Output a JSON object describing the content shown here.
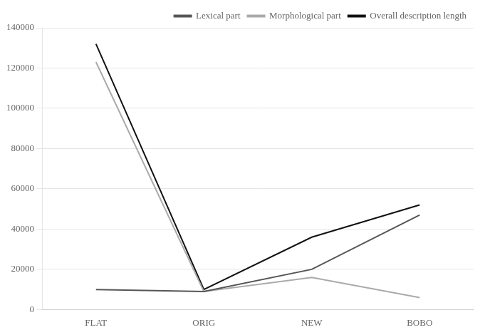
{
  "chart_data": {
    "type": "line",
    "categories": [
      "FLAT",
      "ORIG",
      "NEW",
      "BOBO"
    ],
    "series": [
      {
        "name": "Lexical part",
        "color": "#555555",
        "values": [
          10000,
          9000,
          20000,
          47000
        ]
      },
      {
        "name": "Morphological part",
        "color": "#aaaaaa",
        "values": [
          123000,
          9000,
          16000,
          6000
        ]
      },
      {
        "name": "Overall description length",
        "color": "#111111",
        "values": [
          132000,
          10000,
          36000,
          52000
        ]
      }
    ],
    "ylim": [
      0,
      140000
    ],
    "yticks": [
      0,
      20000,
      40000,
      60000,
      80000,
      100000,
      120000,
      140000
    ],
    "grid": "y",
    "legend": "upper right"
  }
}
